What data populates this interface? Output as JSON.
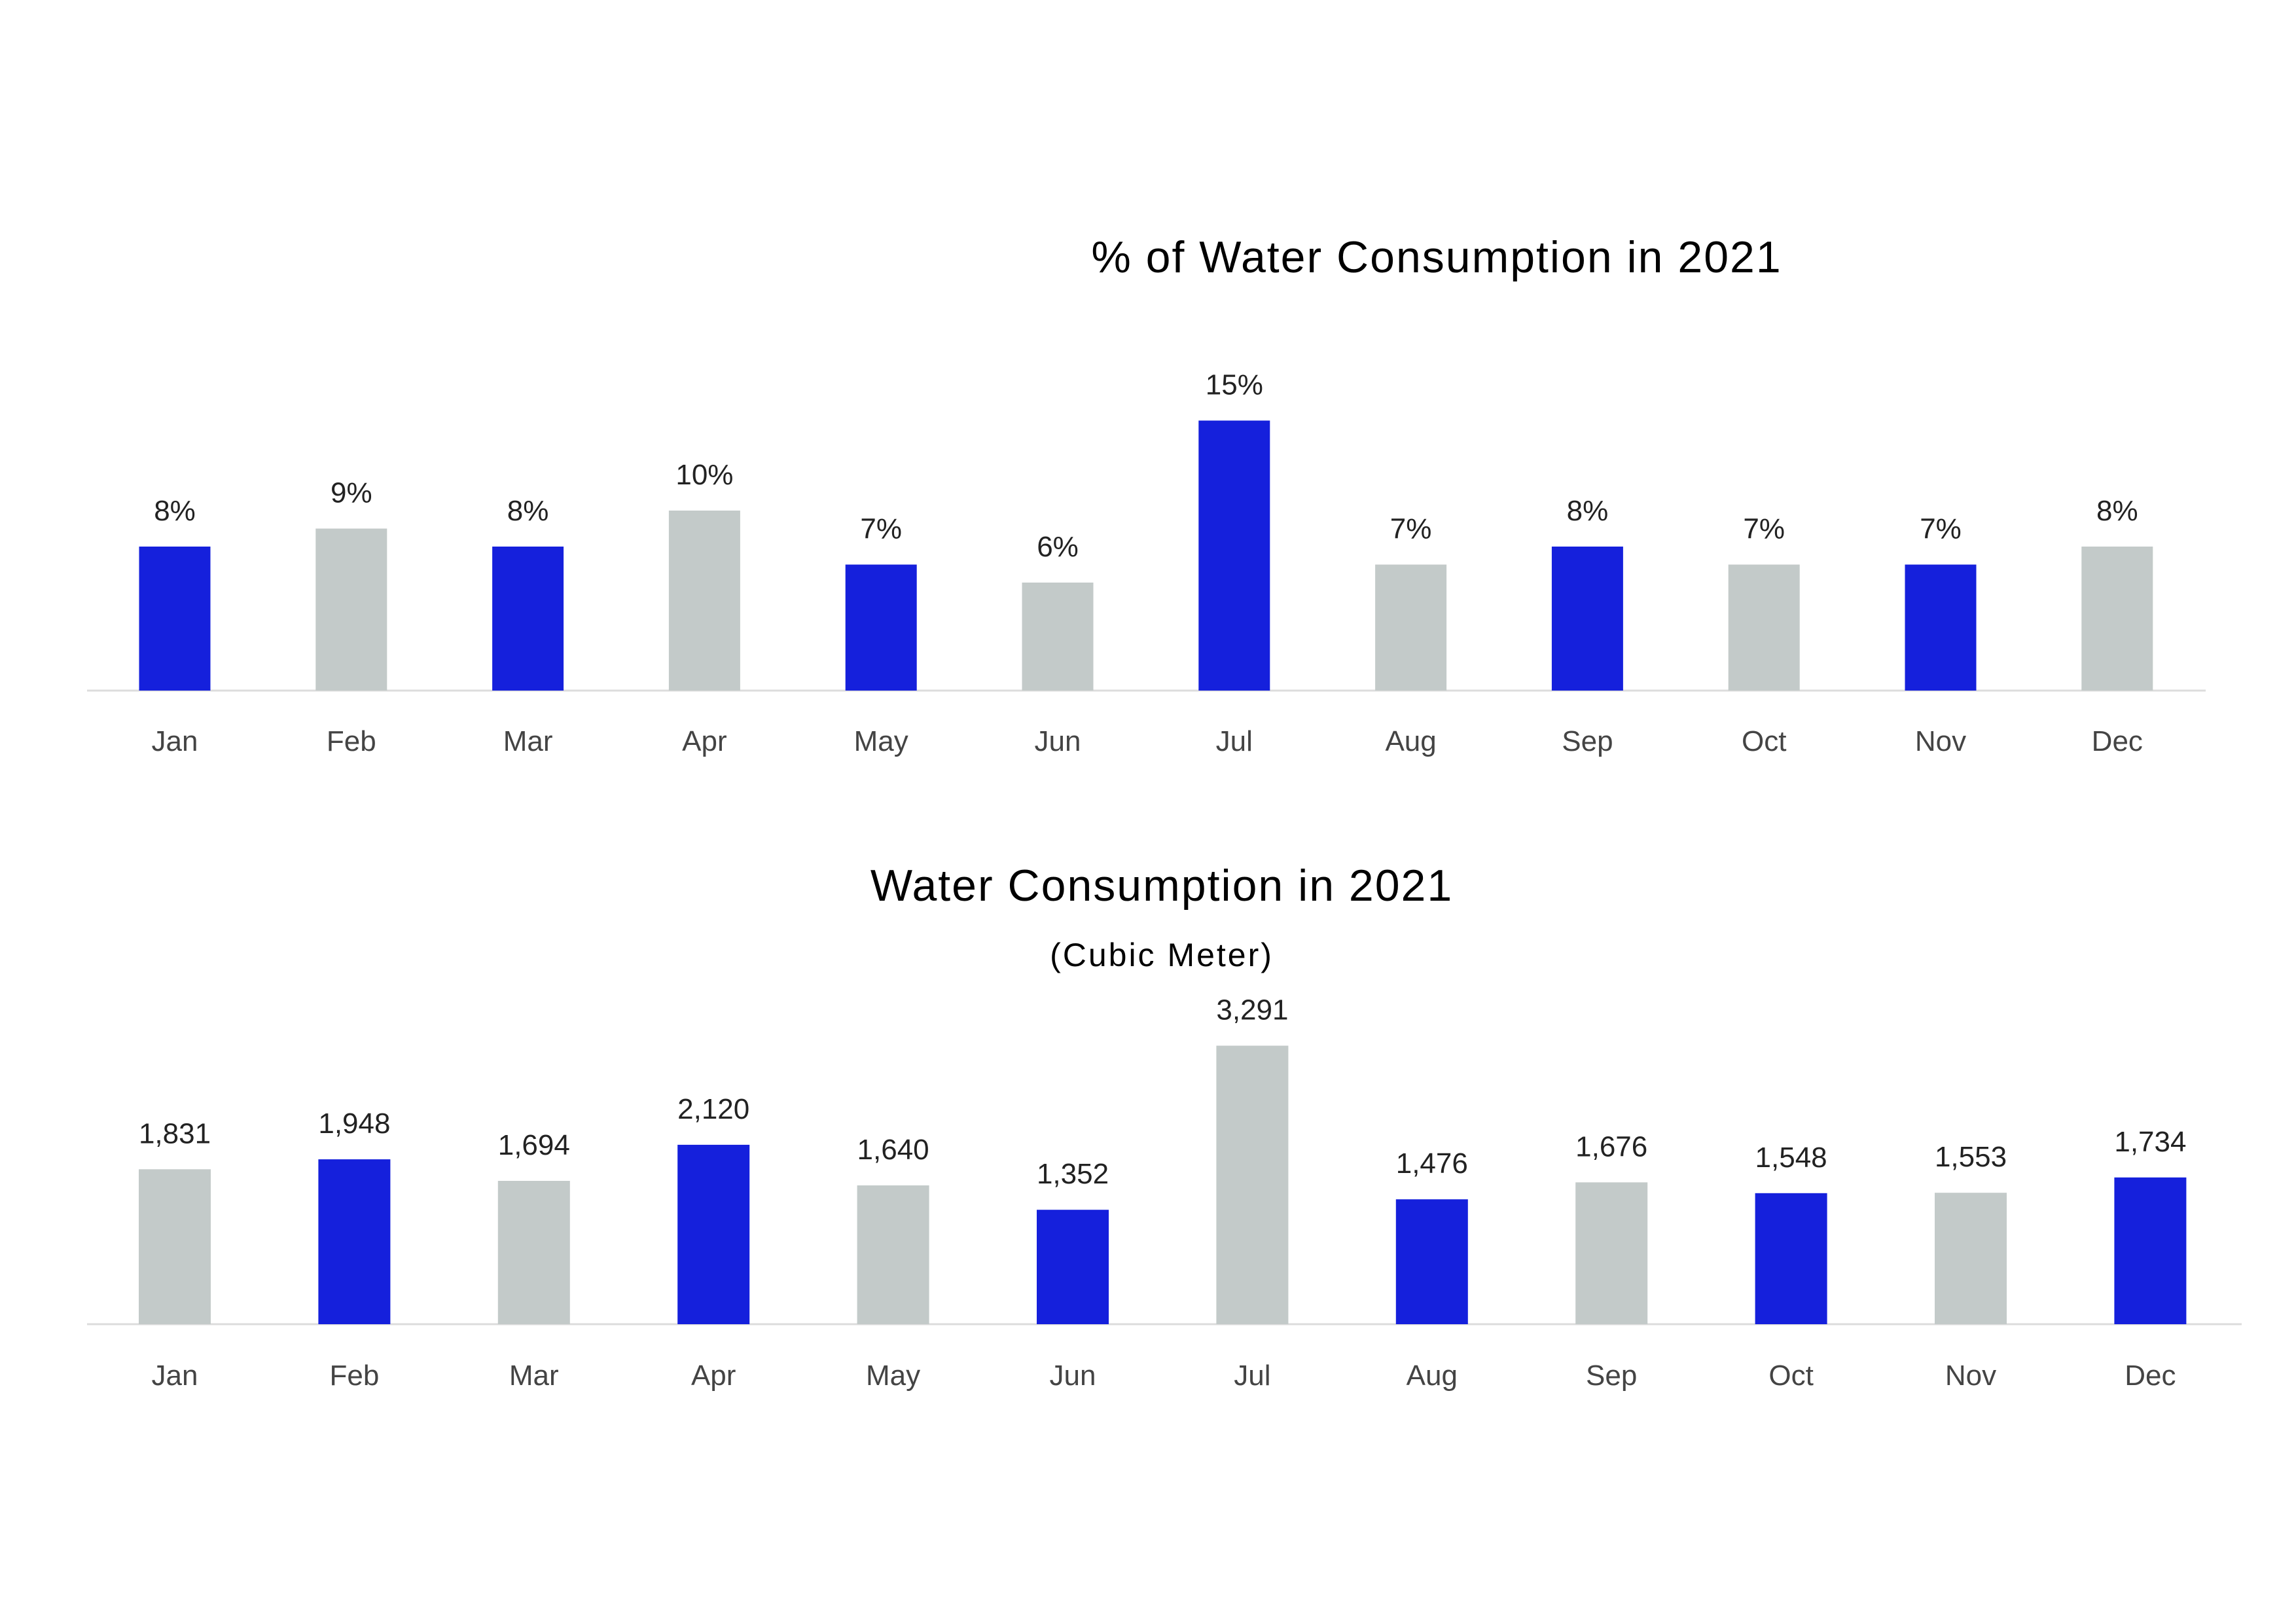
{
  "colors": {
    "blue": "#1520dc",
    "gray": "#c3cac9",
    "axis": "#dcdcdc"
  },
  "chart_data": [
    {
      "type": "bar",
      "title": "% of Water Consumption in 2021",
      "subtitle": "",
      "categories": [
        "Jan",
        "Feb",
        "Mar",
        "Apr",
        "May",
        "Jun",
        "Jul",
        "Aug",
        "Sep",
        "Oct",
        "Nov",
        "Dec"
      ],
      "values": [
        8,
        9,
        8,
        10,
        7,
        6,
        15,
        7,
        8,
        7,
        7,
        8
      ],
      "value_labels": [
        "8%",
        "9%",
        "8%",
        "10%",
        "7%",
        "6%",
        "15%",
        "7%",
        "8%",
        "7%",
        "7%",
        "8%"
      ],
      "bar_colors": [
        "blue",
        "gray",
        "blue",
        "gray",
        "blue",
        "gray",
        "blue",
        "gray",
        "blue",
        "gray",
        "blue",
        "gray"
      ],
      "unit": "%",
      "xlabel": "",
      "ylabel": "",
      "ylim": [
        0,
        15
      ],
      "grid": false,
      "legend": "none"
    },
    {
      "type": "bar",
      "title": "Water Consumption in 2021",
      "subtitle": "(Cubic Meter)",
      "categories": [
        "Jan",
        "Feb",
        "Mar",
        "Apr",
        "May",
        "Jun",
        "Jul",
        "Aug",
        "Sep",
        "Oct",
        "Nov",
        "Dec"
      ],
      "values": [
        1831,
        1948,
        1694,
        2120,
        1640,
        1352,
        3291,
        1476,
        1676,
        1548,
        1553,
        1734
      ],
      "value_labels": [
        "1,831",
        "1,948",
        "1,694",
        "2,120",
        "1,640",
        "1,352",
        "3,291",
        "1,476",
        "1,676",
        "1,548",
        "1,553",
        "1,734"
      ],
      "bar_colors": [
        "gray",
        "blue",
        "gray",
        "blue",
        "gray",
        "blue",
        "gray",
        "blue",
        "gray",
        "blue",
        "gray",
        "blue"
      ],
      "unit": "Cubic Meter",
      "xlabel": "",
      "ylabel": "",
      "ylim": [
        0,
        3291
      ],
      "grid": false,
      "legend": "none"
    }
  ]
}
